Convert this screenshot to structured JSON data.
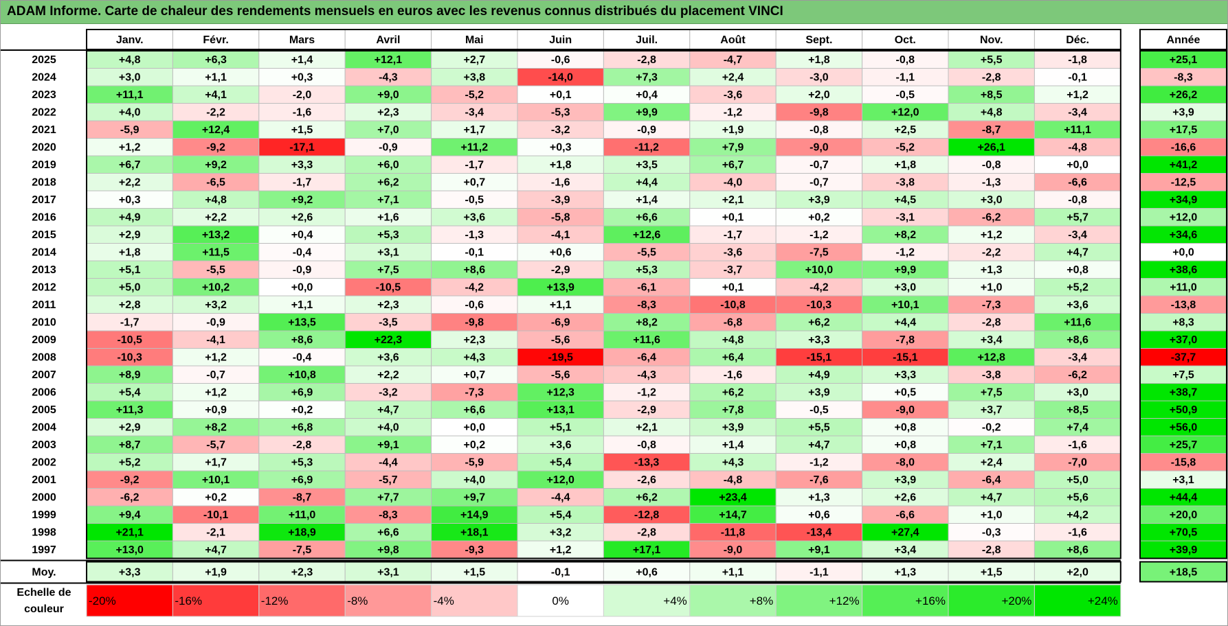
{
  "title": "ADAM Informe. Carte de chaleur des rendements mensuels en euros avec les revenus connus distribués du placement VINCI",
  "chart_data": {
    "type": "heatmap",
    "title": "ADAM Informe. Carte de chaleur des rendements mensuels en euros avec les revenus connus distribués du placement VINCI",
    "columns": [
      "Janv.",
      "Févr.",
      "Mars",
      "Avril",
      "Mai",
      "Juin",
      "Juil.",
      "Août",
      "Sept.",
      "Oct.",
      "Nov.",
      "Déc."
    ],
    "annual_header": "Année",
    "rows": [
      {
        "year": "2025",
        "values": [
          "+4,8",
          "+6,3",
          "+1,4",
          "+12,1",
          "+2,7",
          "-0,6",
          "-2,8",
          "-4,7",
          "+1,8",
          "-0,8",
          "+5,5",
          "-1,8"
        ],
        "annual": "+25,1"
      },
      {
        "year": "2024",
        "values": [
          "+3,0",
          "+1,1",
          "+0,3",
          "-4,3",
          "+3,8",
          "-14,0",
          "+7,3",
          "+2,4",
          "-3,0",
          "-1,1",
          "-2,8",
          "-0,1"
        ],
        "annual": "-8,3"
      },
      {
        "year": "2023",
        "values": [
          "+11,1",
          "+4,1",
          "-2,0",
          "+9,0",
          "-5,2",
          "+0,1",
          "+0,4",
          "-3,6",
          "+2,0",
          "-0,5",
          "+8,5",
          "+1,2"
        ],
        "annual": "+26,2"
      },
      {
        "year": "2022",
        "values": [
          "+4,0",
          "-2,2",
          "-1,6",
          "+2,3",
          "-3,4",
          "-5,3",
          "+9,9",
          "-1,2",
          "-9,8",
          "+12,0",
          "+4,8",
          "-3,4"
        ],
        "annual": "+3,9"
      },
      {
        "year": "2021",
        "values": [
          "-5,9",
          "+12,4",
          "+1,5",
          "+7,0",
          "+1,7",
          "-3,2",
          "-0,9",
          "+1,9",
          "-0,8",
          "+2,5",
          "-8,7",
          "+11,1"
        ],
        "annual": "+17,5"
      },
      {
        "year": "2020",
        "values": [
          "+1,2",
          "-9,2",
          "-17,1",
          "-0,9",
          "+11,2",
          "+0,3",
          "-11,2",
          "+7,9",
          "-9,0",
          "-5,2",
          "+26,1",
          "-4,8"
        ],
        "annual": "-16,6"
      },
      {
        "year": "2019",
        "values": [
          "+6,7",
          "+9,2",
          "+3,3",
          "+6,0",
          "-1,7",
          "+1,8",
          "+3,5",
          "+6,7",
          "-0,7",
          "+1,8",
          "-0,8",
          "+0,0"
        ],
        "annual": "+41,2"
      },
      {
        "year": "2018",
        "values": [
          "+2,2",
          "-6,5",
          "-1,7",
          "+6,2",
          "+0,7",
          "-1,6",
          "+4,4",
          "-4,0",
          "-0,7",
          "-3,8",
          "-1,3",
          "-6,6"
        ],
        "annual": "-12,5"
      },
      {
        "year": "2017",
        "values": [
          "+0,3",
          "+4,8",
          "+9,2",
          "+7,1",
          "-0,5",
          "-3,9",
          "+1,4",
          "+2,1",
          "+3,9",
          "+4,5",
          "+3,0",
          "-0,8"
        ],
        "annual": "+34,9"
      },
      {
        "year": "2016",
        "values": [
          "+4,9",
          "+2,2",
          "+2,6",
          "+1,6",
          "+3,6",
          "-5,8",
          "+6,6",
          "+0,1",
          "+0,2",
          "-3,1",
          "-6,2",
          "+5,7"
        ],
        "annual": "+12,0"
      },
      {
        "year": "2015",
        "values": [
          "+2,9",
          "+13,2",
          "+0,4",
          "+5,3",
          "-1,3",
          "-4,1",
          "+12,6",
          "-1,7",
          "-1,2",
          "+8,2",
          "+1,2",
          "-3,4"
        ],
        "annual": "+34,6"
      },
      {
        "year": "2014",
        "values": [
          "+1,8",
          "+11,5",
          "-0,4",
          "+3,1",
          "-0,1",
          "+0,6",
          "-5,5",
          "-3,6",
          "-7,5",
          "-1,2",
          "-2,2",
          "+4,7"
        ],
        "annual": "+0,0"
      },
      {
        "year": "2013",
        "values": [
          "+5,1",
          "-5,5",
          "-0,9",
          "+7,5",
          "+8,6",
          "-2,9",
          "+5,3",
          "-3,7",
          "+10,0",
          "+9,9",
          "+1,3",
          "+0,8"
        ],
        "annual": "+38,6"
      },
      {
        "year": "2012",
        "values": [
          "+5,0",
          "+10,2",
          "+0,0",
          "-10,5",
          "-4,2",
          "+13,9",
          "-6,1",
          "+0,1",
          "-4,2",
          "+3,0",
          "+1,0",
          "+5,2"
        ],
        "annual": "+11,0"
      },
      {
        "year": "2011",
        "values": [
          "+2,8",
          "+3,2",
          "+1,1",
          "+2,3",
          "-0,6",
          "+1,1",
          "-8,3",
          "-10,8",
          "-10,3",
          "+10,1",
          "-7,3",
          "+3,6"
        ],
        "annual": "-13,8"
      },
      {
        "year": "2010",
        "values": [
          "-1,7",
          "-0,9",
          "+13,5",
          "-3,5",
          "-9,8",
          "-6,9",
          "+8,2",
          "-6,8",
          "+6,2",
          "+4,4",
          "-2,8",
          "+11,6"
        ],
        "annual": "+8,3"
      },
      {
        "year": "2009",
        "values": [
          "-10,5",
          "-4,1",
          "+8,6",
          "+22,3",
          "+2,3",
          "-5,6",
          "+11,6",
          "+4,8",
          "+3,3",
          "-7,8",
          "+3,4",
          "+8,6"
        ],
        "annual": "+37,0"
      },
      {
        "year": "2008",
        "values": [
          "-10,3",
          "+1,2",
          "-0,4",
          "+3,6",
          "+4,3",
          "-19,5",
          "-6,4",
          "+6,4",
          "-15,1",
          "-15,1",
          "+12,8",
          "-3,4"
        ],
        "annual": "-37,7"
      },
      {
        "year": "2007",
        "values": [
          "+8,9",
          "-0,7",
          "+10,8",
          "+2,2",
          "+0,7",
          "-5,6",
          "-4,3",
          "-1,6",
          "+4,9",
          "+3,3",
          "-3,8",
          "-6,2"
        ],
        "annual": "+7,5"
      },
      {
        "year": "2006",
        "values": [
          "+5,4",
          "+1,2",
          "+6,9",
          "-3,2",
          "-7,3",
          "+12,3",
          "-1,2",
          "+6,2",
          "+3,9",
          "+0,5",
          "+7,5",
          "+3,0"
        ],
        "annual": "+38,7"
      },
      {
        "year": "2005",
        "values": [
          "+11,3",
          "+0,9",
          "+0,2",
          "+4,7",
          "+6,6",
          "+13,1",
          "-2,9",
          "+7,8",
          "-0,5",
          "-9,0",
          "+3,7",
          "+8,5"
        ],
        "annual": "+50,9"
      },
      {
        "year": "2004",
        "values": [
          "+2,9",
          "+8,2",
          "+6,8",
          "+4,0",
          "+0,0",
          "+5,1",
          "+2,1",
          "+3,9",
          "+5,5",
          "+0,8",
          "-0,2",
          "+7,4"
        ],
        "annual": "+56,0"
      },
      {
        "year": "2003",
        "values": [
          "+8,7",
          "-5,7",
          "-2,8",
          "+9,1",
          "+0,2",
          "+3,6",
          "-0,8",
          "+1,4",
          "+4,7",
          "+0,8",
          "+7,1",
          "-1,6"
        ],
        "annual": "+25,7"
      },
      {
        "year": "2002",
        "values": [
          "+5,2",
          "+1,7",
          "+5,3",
          "-4,4",
          "-5,9",
          "+5,4",
          "-13,3",
          "+4,3",
          "-1,2",
          "-8,0",
          "+2,4",
          "-7,0"
        ],
        "annual": "-15,8"
      },
      {
        "year": "2001",
        "values": [
          "-9,2",
          "+10,1",
          "+6,9",
          "-5,7",
          "+4,0",
          "+12,0",
          "-2,6",
          "-4,8",
          "-7,6",
          "+3,9",
          "-6,4",
          "+5,0"
        ],
        "annual": "+3,1"
      },
      {
        "year": "2000",
        "values": [
          "-6,2",
          "+0,2",
          "-8,7",
          "+7,7",
          "+9,7",
          "-4,4",
          "+6,2",
          "+23,4",
          "+1,3",
          "+2,6",
          "+4,7",
          "+5,6"
        ],
        "annual": "+44,4"
      },
      {
        "year": "1999",
        "values": [
          "+9,4",
          "-10,1",
          "+11,0",
          "-8,3",
          "+14,9",
          "+5,4",
          "-12,8",
          "+14,7",
          "+0,6",
          "-6,6",
          "+1,0",
          "+4,2"
        ],
        "annual": "+20,0"
      },
      {
        "year": "1998",
        "values": [
          "+21,1",
          "-2,1",
          "+18,9",
          "+6,6",
          "+18,1",
          "+3,2",
          "-2,8",
          "-11,8",
          "-13,4",
          "+27,4",
          "-0,3",
          "-1,6"
        ],
        "annual": "+70,5"
      },
      {
        "year": "1997",
        "values": [
          "+13,0",
          "+4,7",
          "-7,5",
          "+9,8",
          "-9,3",
          "+1,2",
          "+17,1",
          "-9,0",
          "+9,1",
          "+3,4",
          "-2,8",
          "+8,6"
        ],
        "annual": "+39,9"
      }
    ],
    "average_row": {
      "label": "Moy.",
      "values": [
        "+3,3",
        "+1,9",
        "+2,3",
        "+3,1",
        "+1,5",
        "-0,1",
        "+0,6",
        "+1,1",
        "-1,1",
        "+1,3",
        "+1,5",
        "+2,0"
      ],
      "annual": "+18,5"
    },
    "scale": {
      "label_line1": "Echelle de",
      "label_line2": "couleur",
      "steps": [
        {
          "label": "-20%",
          "value": -20,
          "color": "#ff0000"
        },
        {
          "label": "-16%",
          "value": -16,
          "color": "#ff3b3b"
        },
        {
          "label": "-12%",
          "value": -12,
          "color": "#ff6a6a"
        },
        {
          "label": "-8%",
          "value": -8,
          "color": "#ff9898"
        },
        {
          "label": "-4%",
          "value": -4,
          "color": "#ffc8c8"
        },
        {
          "label": "0%",
          "value": 0,
          "color": "#ffffff"
        },
        {
          "label": "+4%",
          "value": 4,
          "color": "#d4fbd4"
        },
        {
          "label": "+8%",
          "value": 8,
          "color": "#aaf7aa"
        },
        {
          "label": "+12%",
          "value": 12,
          "color": "#80f380"
        },
        {
          "label": "+16%",
          "value": 16,
          "color": "#55ef55"
        },
        {
          "label": "+20%",
          "value": 20,
          "color": "#2beb2b"
        },
        {
          "label": "+24%",
          "value": 24,
          "color": "#00e600"
        }
      ]
    },
    "colors": {
      "title_bar": "#7dc87a",
      "negative_max": "#ff0000",
      "neutral": "#ffffff",
      "positive_max": "#00e600"
    }
  }
}
